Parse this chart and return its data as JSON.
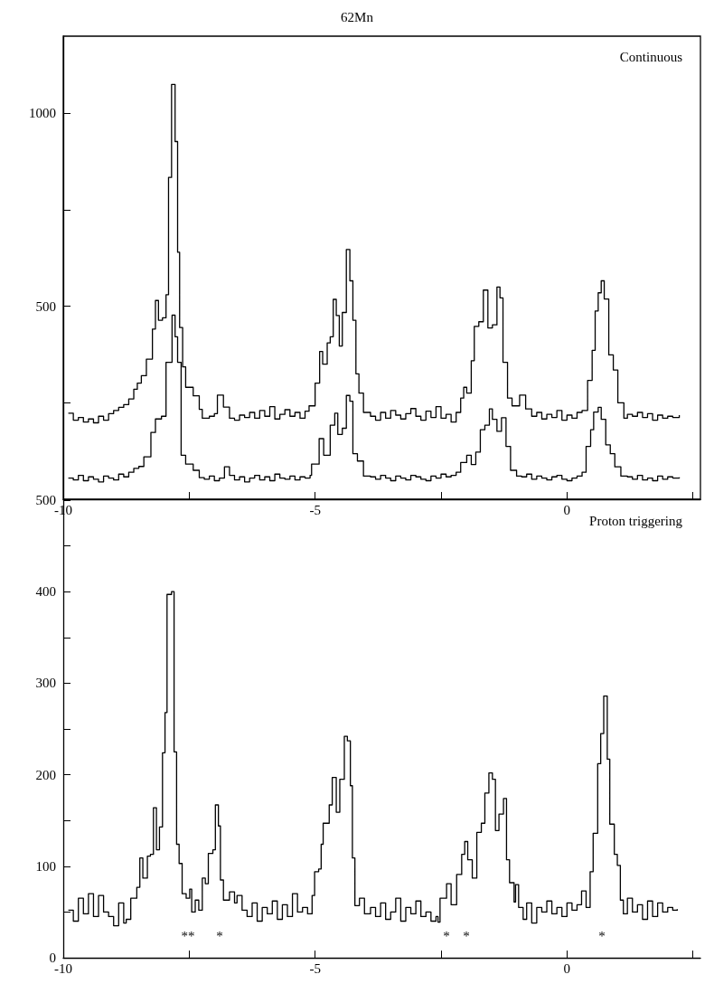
{
  "chart_data": [
    {
      "type": "step",
      "title": "62Mn",
      "annotations": [
        "Continuous"
      ],
      "xlim": [
        -10,
        2.65
      ],
      "xticks": [
        -10,
        {
          "value": -7.5,
          "label": null
        },
        -5,
        {
          "value": -2.5,
          "label": null
        },
        0,
        {
          "value": 2.5,
          "label": null
        }
      ],
      "ylim": [
        0,
        1200
      ],
      "yticks": [
        {
          "value": 0,
          "label": null
        },
        {
          "value": 250,
          "label": null
        },
        500,
        {
          "value": 750,
          "label": null
        },
        1000
      ],
      "grid": false,
      "marker": "none",
      "line_style": "solid",
      "series": [
        {
          "color": "#000000",
          "x": [
            -9.9,
            -9.8,
            -9.7,
            -9.6,
            -9.5,
            -9.4,
            -9.3,
            -9.2,
            -9.1,
            -9.0,
            -8.9,
            -8.8,
            -8.7,
            -8.6,
            -8.53,
            -8.45,
            -8.35,
            -8.23,
            -8.17,
            -8.11,
            -8.03,
            -7.96,
            -7.91,
            -7.85,
            -7.78,
            -7.73,
            -7.69,
            -7.63,
            -7.57,
            -7.42,
            -7.3,
            -7.24,
            -7.1,
            -7.0,
            -6.94,
            -6.82,
            -6.7,
            -6.6,
            -6.5,
            -6.4,
            -6.3,
            -6.2,
            -6.1,
            -6.0,
            -5.9,
            -5.8,
            -5.7,
            -5.6,
            -5.5,
            -5.4,
            -5.3,
            -5.2,
            -5.12,
            -5.0,
            -4.91,
            -4.85,
            -4.76,
            -4.7,
            -4.64,
            -4.58,
            -4.52,
            -4.46,
            -4.38,
            -4.31,
            -4.25,
            -4.19,
            -4.13,
            -4.04,
            -3.9,
            -3.8,
            -3.7,
            -3.6,
            -3.5,
            -3.4,
            -3.3,
            -3.2,
            -3.1,
            -3.0,
            -2.9,
            -2.8,
            -2.7,
            -2.6,
            -2.5,
            -2.4,
            -2.3,
            -2.2,
            -2.11,
            -2.05,
            -1.99,
            -1.9,
            -1.84,
            -1.75,
            -1.66,
            -1.57,
            -1.48,
            -1.39,
            -1.33,
            -1.27,
            -1.18,
            -1.09,
            -0.94,
            -0.82,
            -0.7,
            -0.6,
            -0.5,
            -0.4,
            -0.3,
            -0.2,
            -0.1,
            0.0,
            0.1,
            0.2,
            0.3,
            0.41,
            0.5,
            0.56,
            0.62,
            0.68,
            0.74,
            0.83,
            0.92,
            1.01,
            1.13,
            1.2,
            1.3,
            1.4,
            1.5,
            1.6,
            1.7,
            1.8,
            1.9,
            2.0,
            2.1,
            2.23
          ],
          "values": [
            223,
            205,
            212,
            200,
            208,
            198,
            215,
            205,
            222,
            230,
            238,
            245,
            260,
            285,
            301,
            320,
            363,
            441,
            515,
            464,
            470,
            530,
            834,
            1075,
            927,
            640,
            445,
            343,
            290,
            268,
            233,
            210,
            215,
            222,
            270,
            239,
            210,
            205,
            218,
            212,
            225,
            210,
            230,
            215,
            240,
            208,
            220,
            232,
            215,
            225,
            210,
            228,
            242,
            301,
            383,
            350,
            405,
            421,
            518,
            476,
            397,
            484,
            647,
            566,
            464,
            325,
            275,
            225,
            215,
            205,
            225,
            210,
            230,
            218,
            208,
            222,
            235,
            215,
            205,
            228,
            212,
            240,
            210,
            220,
            200,
            225,
            262,
            290,
            275,
            359,
            448,
            460,
            542,
            444,
            452,
            550,
            522,
            355,
            262,
            242,
            270,
            234,
            215,
            225,
            208,
            220,
            212,
            230,
            205,
            218,
            210,
            225,
            230,
            308,
            386,
            488,
            535,
            566,
            519,
            374,
            335,
            250,
            210,
            220,
            215,
            225,
            212,
            222,
            205,
            218,
            210,
            215,
            212,
            218
          ]
        },
        {
          "color": "#000000",
          "x": [
            -9.9,
            -9.8,
            -9.7,
            -9.6,
            -9.5,
            -9.4,
            -9.3,
            -9.2,
            -9.1,
            -9.0,
            -8.9,
            -8.8,
            -8.7,
            -8.6,
            -8.5,
            -8.4,
            -8.26,
            -8.17,
            -8.05,
            -7.96,
            -7.84,
            -7.78,
            -7.73,
            -7.66,
            -7.57,
            -7.42,
            -7.3,
            -7.2,
            -7.1,
            -7.0,
            -6.9,
            -6.8,
            -6.7,
            -6.6,
            -6.5,
            -6.4,
            -6.3,
            -6.2,
            -6.1,
            -6.0,
            -5.9,
            -5.8,
            -5.7,
            -5.6,
            -5.5,
            -5.4,
            -5.3,
            -5.2,
            -5.1,
            -5.07,
            -4.92,
            -4.83,
            -4.7,
            -4.61,
            -4.55,
            -4.46,
            -4.38,
            -4.31,
            -4.25,
            -4.16,
            -4.04,
            -3.9,
            -3.8,
            -3.7,
            -3.6,
            -3.5,
            -3.4,
            -3.3,
            -3.2,
            -3.1,
            -3.0,
            -2.9,
            -2.8,
            -2.7,
            -2.6,
            -2.5,
            -2.4,
            -2.3,
            -2.2,
            -2.11,
            -1.99,
            -1.9,
            -1.81,
            -1.72,
            -1.63,
            -1.54,
            -1.48,
            -1.39,
            -1.3,
            -1.21,
            -1.12,
            -1.0,
            -0.9,
            -0.8,
            -0.7,
            -0.6,
            -0.5,
            -0.4,
            -0.3,
            -0.2,
            -0.1,
            0.0,
            0.1,
            0.2,
            0.3,
            0.38,
            0.47,
            0.53,
            0.62,
            0.68,
            0.77,
            0.86,
            0.95,
            1.07,
            1.2,
            1.3,
            1.4,
            1.5,
            1.6,
            1.7,
            1.8,
            1.9,
            2.0,
            2.1,
            2.23
          ],
          "values": [
            55,
            50,
            62,
            48,
            58,
            52,
            45,
            60,
            55,
            50,
            65,
            58,
            70,
            80,
            85,
            110,
            173,
            208,
            215,
            355,
            477,
            421,
            355,
            114,
            91,
            75,
            56,
            52,
            60,
            48,
            55,
            84,
            62,
            50,
            58,
            45,
            55,
            62,
            50,
            58,
            48,
            65,
            55,
            52,
            60,
            50,
            58,
            55,
            62,
            91,
            157,
            114,
            192,
            223,
            168,
            184,
            269,
            254,
            118,
            99,
            60,
            58,
            52,
            62,
            55,
            48,
            60,
            55,
            50,
            62,
            58,
            52,
            48,
            60,
            55,
            65,
            58,
            62,
            70,
            95,
            114,
            90,
            122,
            180,
            192,
            234,
            207,
            176,
            211,
            137,
            75,
            60,
            58,
            65,
            52,
            60,
            55,
            50,
            58,
            62,
            52,
            48,
            55,
            60,
            70,
            137,
            180,
            226,
            238,
            207,
            141,
            118,
            84,
            60,
            58,
            52,
            62,
            50,
            55,
            48,
            60,
            52,
            58,
            55,
            57
          ]
        }
      ]
    },
    {
      "type": "step",
      "annotations": [
        "Proton triggering",
        "**",
        "*",
        "*",
        "*",
        "*"
      ],
      "xlim": [
        -10,
        2.65
      ],
      "xticks": [
        -10,
        {
          "value": -7.5,
          "label": null
        },
        -5,
        {
          "value": -2.5,
          "label": null
        },
        0,
        {
          "value": 2.5,
          "label": null
        }
      ],
      "ylim": [
        0,
        500
      ],
      "yticks": [
        0,
        {
          "value": 50,
          "label": null
        },
        100,
        {
          "value": 150,
          "label": null
        },
        200,
        {
          "value": 250,
          "label": null
        },
        300,
        {
          "value": 350,
          "label": null
        },
        400,
        {
          "value": 450,
          "label": null
        },
        500
      ],
      "grid": false,
      "marker": "none",
      "line_style": "solid",
      "series": [
        {
          "color": "#000000",
          "x": [
            -9.9,
            -9.8,
            -9.7,
            -9.6,
            -9.5,
            -9.4,
            -9.3,
            -9.2,
            -9.1,
            -9.0,
            -8.9,
            -8.8,
            -8.75,
            -8.66,
            -8.54,
            -8.48,
            -8.42,
            -8.33,
            -8.27,
            -8.21,
            -8.15,
            -8.09,
            -8.03,
            -7.98,
            -7.94,
            -7.85,
            -7.8,
            -7.75,
            -7.7,
            -7.64,
            -7.56,
            -7.49,
            -7.45,
            -7.38,
            -7.31,
            -7.24,
            -7.18,
            -7.12,
            -7.03,
            -6.98,
            -6.92,
            -6.88,
            -6.82,
            -6.7,
            -6.6,
            -6.55,
            -6.45,
            -6.35,
            -6.25,
            -6.15,
            -6.05,
            -5.95,
            -5.85,
            -5.75,
            -5.65,
            -5.55,
            -5.45,
            -5.35,
            -5.25,
            -5.15,
            -5.06,
            -5.01,
            -4.93,
            -4.88,
            -4.84,
            -4.72,
            -4.66,
            -4.58,
            -4.51,
            -4.42,
            -4.36,
            -4.3,
            -4.26,
            -4.21,
            -4.12,
            -4.02,
            -3.9,
            -3.8,
            -3.7,
            -3.6,
            -3.5,
            -3.4,
            -3.3,
            -3.2,
            -3.1,
            -3.0,
            -2.9,
            -2.8,
            -2.7,
            -2.6,
            -2.56,
            -2.52,
            -2.39,
            -2.3,
            -2.19,
            -2.09,
            -2.03,
            -1.97,
            -1.88,
            -1.79,
            -1.7,
            -1.63,
            -1.55,
            -1.48,
            -1.42,
            -1.35,
            -1.26,
            -1.2,
            -1.14,
            -1.05,
            -1.02,
            -0.96,
            -0.87,
            -0.8,
            -0.7,
            -0.6,
            -0.5,
            -0.4,
            -0.3,
            -0.2,
            -0.1,
            0.0,
            0.1,
            0.2,
            0.29,
            0.38,
            0.46,
            0.52,
            0.61,
            0.67,
            0.73,
            0.8,
            0.85,
            0.94,
            1.0,
            1.06,
            1.12,
            1.2,
            1.3,
            1.4,
            1.5,
            1.6,
            1.7,
            1.8,
            1.9,
            2.0,
            2.1,
            2.19
          ],
          "values": [
            52,
            40,
            65,
            48,
            70,
            45,
            68,
            50,
            45,
            35,
            60,
            38,
            42,
            65,
            77,
            109,
            87,
            111,
            113,
            164,
            118,
            143,
            224,
            268,
            397,
            400,
            225,
            124,
            103,
            70,
            65,
            75,
            50,
            63,
            52,
            87,
            81,
            114,
            118,
            167,
            144,
            85,
            63,
            72,
            60,
            68,
            52,
            45,
            60,
            40,
            55,
            48,
            62,
            42,
            58,
            45,
            70,
            50,
            55,
            48,
            68,
            94,
            97,
            124,
            147,
            167,
            197,
            159,
            195,
            242,
            237,
            188,
            109,
            57,
            65,
            48,
            55,
            45,
            60,
            42,
            50,
            65,
            40,
            55,
            48,
            62,
            45,
            50,
            40,
            45,
            39,
            65,
            81,
            58,
            91,
            113,
            127,
            107,
            87,
            137,
            147,
            180,
            202,
            195,
            139,
            157,
            174,
            107,
            82,
            61,
            80,
            55,
            42,
            60,
            38,
            55,
            50,
            62,
            48,
            55,
            45,
            60,
            52,
            58,
            73,
            55,
            94,
            136,
            212,
            245,
            286,
            217,
            146,
            113,
            101,
            63,
            48,
            65,
            50,
            58,
            42,
            62,
            45,
            60,
            50,
            55,
            52,
            53
          ]
        }
      ]
    }
  ]
}
